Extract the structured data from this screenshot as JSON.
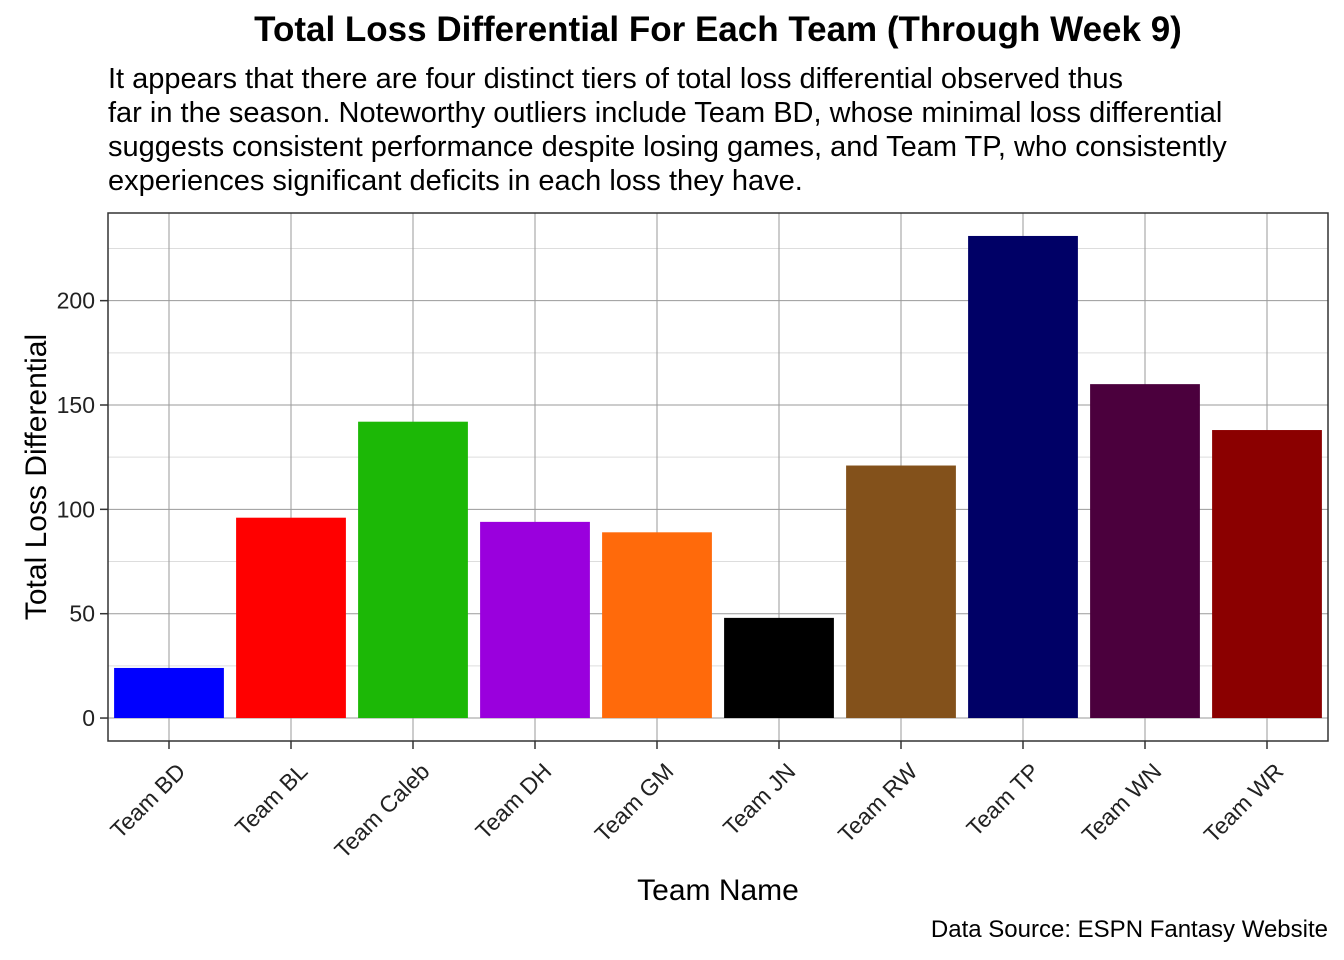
{
  "chart_data": {
    "type": "bar",
    "title": "Total Loss Differential For Each Team (Through Week 9)",
    "subtitle_lines": [
      "It appears that there are four distinct tiers of total loss differential observed thus",
      "far in the season. Noteworthy outliers include Team BD, whose minimal loss differential",
      "suggests consistent performance despite losing games, and Team TP, who consistently",
      "experiences significant deficits in each loss they have."
    ],
    "xlabel": "Team Name",
    "ylabel": "Total Loss Differential",
    "caption": "Data Source: ESPN Fantasy Website",
    "categories": [
      "Team BD",
      "Team BL",
      "Team Caleb",
      "Team DH",
      "Team GM",
      "Team JN",
      "Team RW",
      "Team TP",
      "Team WN",
      "Team WR"
    ],
    "values": [
      24,
      96,
      142,
      94,
      89,
      48,
      121,
      231,
      160,
      138
    ],
    "colors": [
      "#0000ff",
      "#ff0000",
      "#1cb806",
      "#9a00dd",
      "#ff6a0b",
      "#000000",
      "#83511b",
      "#000066",
      "#4b003d",
      "#8b0000"
    ],
    "ylim": [
      -11,
      242
    ],
    "yticks": [
      0,
      50,
      100,
      150,
      200
    ],
    "grid": true,
    "legend": "none"
  }
}
